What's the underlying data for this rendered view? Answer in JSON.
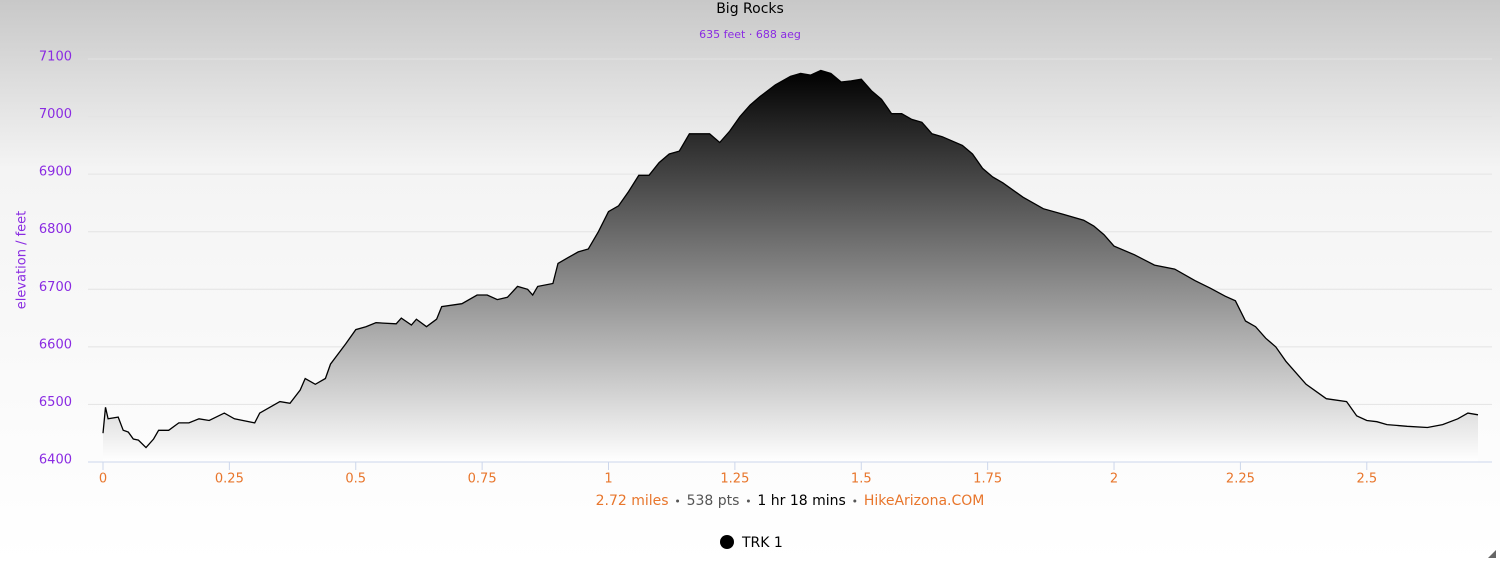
{
  "chart_data": {
    "type": "area",
    "title": "Big Rocks",
    "subtitle": "635 feet · 688 aeg",
    "y_label": "elevation / feet",
    "x": [
      0,
      0.005,
      0.01,
      0.03,
      0.04,
      0.05,
      0.06,
      0.07,
      0.085,
      0.1,
      0.11,
      0.13,
      0.15,
      0.17,
      0.19,
      0.21,
      0.24,
      0.26,
      0.3,
      0.31,
      0.35,
      0.37,
      0.39,
      0.4,
      0.42,
      0.44,
      0.45,
      0.48,
      0.5,
      0.52,
      0.54,
      0.58,
      0.59,
      0.61,
      0.62,
      0.64,
      0.66,
      0.67,
      0.71,
      0.74,
      0.76,
      0.78,
      0.8,
      0.82,
      0.84,
      0.85,
      0.86,
      0.89,
      0.9,
      0.92,
      0.94,
      0.96,
      0.98,
      1,
      1.02,
      1.04,
      1.06,
      1.08,
      1.1,
      1.12,
      1.14,
      1.16,
      1.2,
      1.22,
      1.24,
      1.26,
      1.28,
      1.3,
      1.33,
      1.36,
      1.38,
      1.4,
      1.42,
      1.44,
      1.46,
      1.48,
      1.5,
      1.52,
      1.54,
      1.56,
      1.58,
      1.6,
      1.62,
      1.64,
      1.66,
      1.7,
      1.72,
      1.74,
      1.76,
      1.78,
      1.82,
      1.86,
      1.9,
      1.94,
      1.96,
      1.98,
      2,
      2.04,
      2.08,
      2.12,
      2.16,
      2.19,
      2.22,
      2.24,
      2.26,
      2.28,
      2.3,
      2.32,
      2.34,
      2.36,
      2.38,
      2.42,
      2.46,
      2.48,
      2.5,
      2.52,
      2.54,
      2.58,
      2.62,
      2.65,
      2.68,
      2.7,
      2.72
    ],
    "series": [
      {
        "name": "TRK 1",
        "color": "#000000",
        "values": [
          6450,
          6495,
          6475,
          6478,
          6455,
          6452,
          6440,
          6438,
          6425,
          6440,
          6455,
          6455,
          6468,
          6468,
          6475,
          6472,
          6485,
          6475,
          6468,
          6485,
          6505,
          6502,
          6525,
          6545,
          6535,
          6545,
          6570,
          6605,
          6630,
          6635,
          6642,
          6640,
          6650,
          6638,
          6648,
          6635,
          6648,
          6670,
          6675,
          6690,
          6690,
          6682,
          6686,
          6705,
          6700,
          6690,
          6705,
          6710,
          6745,
          6755,
          6765,
          6770,
          6800,
          6835,
          6845,
          6870,
          6898,
          6898,
          6920,
          6935,
          6940,
          6970,
          6970,
          6955,
          6975,
          7000,
          7020,
          7035,
          7055,
          7070,
          7075,
          7072,
          7080,
          7075,
          7060,
          7062,
          7065,
          7045,
          7030,
          7005,
          7005,
          6995,
          6990,
          6970,
          6965,
          6950,
          6935,
          6910,
          6895,
          6885,
          6860,
          6840,
          6830,
          6820,
          6810,
          6795,
          6775,
          6760,
          6742,
          6735,
          6715,
          6702,
          6688,
          6680,
          6645,
          6635,
          6615,
          6600,
          6575,
          6555,
          6535,
          6510,
          6505,
          6480,
          6472,
          6470,
          6465,
          6462,
          6460,
          6465,
          6475,
          6485,
          6482
        ]
      }
    ],
    "xlim": [
      0,
      2.72
    ],
    "ylim": [
      6400,
      7100
    ],
    "xticks": [
      0,
      0.25,
      0.5,
      0.75,
      1,
      1.25,
      1.5,
      1.75,
      2,
      2.25,
      2.5
    ],
    "yticks": [
      6400,
      6500,
      6600,
      6700,
      6800,
      6900,
      7000,
      7100
    ],
    "grid": true,
    "xtick_color": "#e8762c",
    "ytick_color": "#8a2be2",
    "footer": [
      {
        "text": "2.72 miles",
        "color": "#e8762c"
      },
      {
        "text": "538 pts",
        "color": "#555555"
      },
      {
        "text": "1 hr 18 mins",
        "color": "#000000"
      },
      {
        "text": "HikeArizona.COM",
        "color": "#e8762c"
      }
    ]
  }
}
